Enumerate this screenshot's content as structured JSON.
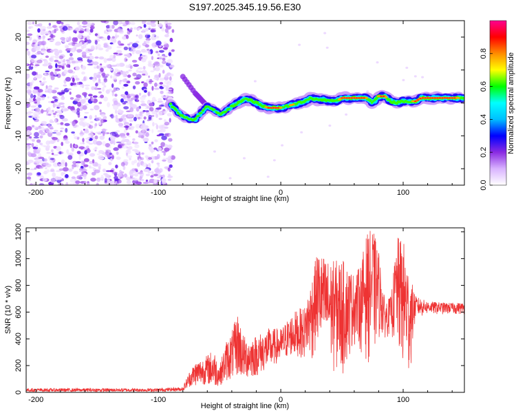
{
  "title": "S197.2025.345.19.56.E30",
  "chart_data": [
    {
      "type": "heatmap",
      "xlabel": "Height of straight line (km)",
      "ylabel": "Frequency (Hz)",
      "xlim": [
        -208,
        150
      ],
      "ylim": [
        -25,
        25
      ],
      "xticks": [
        -200,
        -100,
        0,
        100
      ],
      "yticks": [
        -20,
        -10,
        0,
        10,
        20
      ],
      "xtick_labels": [
        "-200",
        "-100",
        "0",
        "100"
      ],
      "ytick_labels": [
        "-20",
        "-10",
        "0",
        "10",
        "20"
      ],
      "colorbar": {
        "label": "Normalized spectral amplitude",
        "range": [
          0,
          1
        ],
        "ticks": [
          0.0,
          0.2,
          0.4,
          0.6,
          0.8
        ],
        "tick_labels": [
          "0.0",
          "0.2",
          "0.4",
          "0.6",
          "0.8"
        ],
        "colors": [
          "#ffffff",
          "#d9b3ff",
          "#8a2be2",
          "#0000ff",
          "#00bfff",
          "#00ffff",
          "#00ff00",
          "#ffff00",
          "#ff8c00",
          "#ff0000",
          "#ff0090"
        ]
      },
      "noise_region_x": [
        -208,
        -88
      ],
      "ridge_center": [
        [
          -90,
          -0.5
        ],
        [
          -85,
          -2.5
        ],
        [
          -80,
          -4
        ],
        [
          -75,
          -5
        ],
        [
          -70,
          -5
        ],
        [
          -65,
          -3
        ],
        [
          -60,
          -1
        ],
        [
          -55,
          -2
        ],
        [
          -50,
          -3.5
        ],
        [
          -45,
          -2.5
        ],
        [
          -40,
          -1
        ],
        [
          -35,
          0
        ],
        [
          -30,
          1
        ],
        [
          -25,
          1
        ],
        [
          -20,
          0
        ],
        [
          -15,
          -1
        ],
        [
          -10,
          -1.5
        ],
        [
          -5,
          -1.5
        ],
        [
          0,
          -1.5
        ],
        [
          5,
          -1
        ],
        [
          10,
          -0.5
        ],
        [
          15,
          0
        ],
        [
          20,
          0.5
        ],
        [
          25,
          1.5
        ],
        [
          30,
          1
        ],
        [
          35,
          1
        ],
        [
          40,
          0.5
        ],
        [
          45,
          0.5
        ],
        [
          50,
          1.5
        ],
        [
          55,
          1.5
        ],
        [
          60,
          1.5
        ],
        [
          65,
          1.5
        ],
        [
          70,
          1.5
        ],
        [
          75,
          0
        ],
        [
          80,
          2
        ],
        [
          85,
          2
        ],
        [
          90,
          0.5
        ],
        [
          95,
          0
        ],
        [
          100,
          0.5
        ],
        [
          105,
          0.5
        ],
        [
          110,
          0.5
        ],
        [
          115,
          1.5
        ],
        [
          120,
          1.5
        ],
        [
          125,
          1.5
        ],
        [
          130,
          1.5
        ],
        [
          135,
          1.5
        ],
        [
          140,
          1.5
        ],
        [
          145,
          1.5
        ],
        [
          150,
          1.5
        ]
      ],
      "side_branch": [
        [
          -80,
          8
        ],
        [
          -70,
          3
        ],
        [
          -65,
          1
        ],
        [
          -60,
          -1
        ]
      ]
    },
    {
      "type": "line",
      "xlabel": "Height of straight line (km)",
      "ylabel": "SNR (10 * v/v)",
      "xlim": [
        -208,
        150
      ],
      "ylim": [
        0,
        1230
      ],
      "xticks": [
        -200,
        -100,
        0,
        100
      ],
      "yticks": [
        0,
        200,
        400,
        600,
        800,
        1000,
        1200
      ],
      "xtick_labels": [
        "-200",
        "-100",
        "0",
        "100"
      ],
      "ytick_labels": [
        "0",
        "200",
        "400",
        "600",
        "800",
        "1000",
        "1200"
      ],
      "color": "#ee3333",
      "envelope": [
        {
          "x": -208,
          "min": 5,
          "max": 30
        },
        {
          "x": -100,
          "min": 5,
          "max": 30
        },
        {
          "x": -80,
          "min": 10,
          "max": 40
        },
        {
          "x": -75,
          "min": 40,
          "max": 150
        },
        {
          "x": -70,
          "min": 50,
          "max": 230
        },
        {
          "x": -60,
          "min": 60,
          "max": 280
        },
        {
          "x": -55,
          "min": 40,
          "max": 330
        },
        {
          "x": -50,
          "min": 50,
          "max": 200
        },
        {
          "x": -45,
          "min": 80,
          "max": 380
        },
        {
          "x": -40,
          "min": 100,
          "max": 460
        },
        {
          "x": -35,
          "min": 120,
          "max": 600
        },
        {
          "x": -30,
          "min": 100,
          "max": 420
        },
        {
          "x": -20,
          "min": 120,
          "max": 430
        },
        {
          "x": -10,
          "min": 180,
          "max": 480
        },
        {
          "x": 0,
          "min": 230,
          "max": 480
        },
        {
          "x": 10,
          "min": 280,
          "max": 600
        },
        {
          "x": 20,
          "min": 250,
          "max": 650
        },
        {
          "x": 25,
          "min": 200,
          "max": 850
        },
        {
          "x": 30,
          "min": 300,
          "max": 1060
        },
        {
          "x": 40,
          "min": 150,
          "max": 980
        },
        {
          "x": 50,
          "min": 80,
          "max": 1000
        },
        {
          "x": 60,
          "min": 350,
          "max": 880
        },
        {
          "x": 65,
          "min": 300,
          "max": 950
        },
        {
          "x": 70,
          "min": 220,
          "max": 1180
        },
        {
          "x": 75,
          "min": 200,
          "max": 1230
        },
        {
          "x": 80,
          "min": 380,
          "max": 1060
        },
        {
          "x": 85,
          "min": 400,
          "max": 680
        },
        {
          "x": 90,
          "min": 430,
          "max": 720
        },
        {
          "x": 95,
          "min": 250,
          "max": 1160
        },
        {
          "x": 100,
          "min": 100,
          "max": 1150
        },
        {
          "x": 105,
          "min": 60,
          "max": 900
        },
        {
          "x": 110,
          "min": 540,
          "max": 720
        },
        {
          "x": 120,
          "min": 580,
          "max": 680
        },
        {
          "x": 135,
          "min": 580,
          "max": 670
        },
        {
          "x": 150,
          "min": 580,
          "max": 670
        }
      ]
    }
  ]
}
